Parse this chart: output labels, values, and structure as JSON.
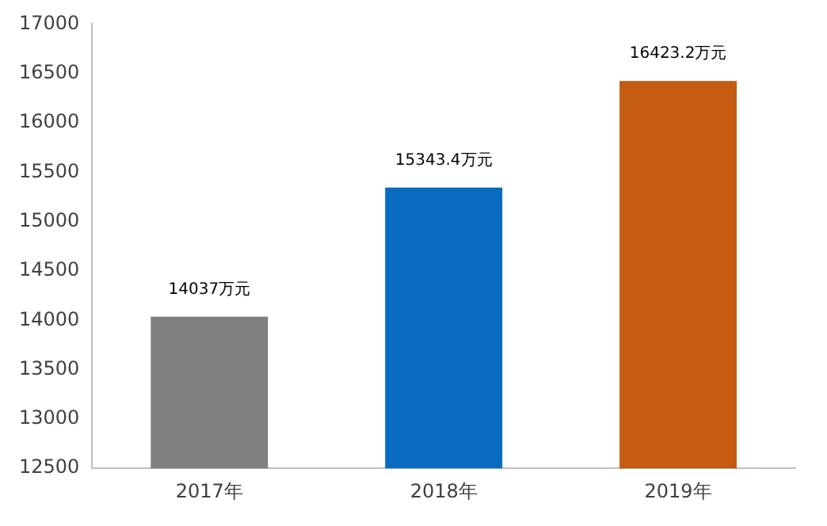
{
  "chart_data": {
    "type": "bar",
    "categories": [
      "2017年",
      "2018年",
      "2019年"
    ],
    "values": [
      14037,
      15343.4,
      16423.2
    ],
    "colors": [
      "#7f7f7f",
      "#0a6cc0",
      "#c55a11"
    ],
    "value_labels": [
      "14037万元",
      "15343.4万元",
      "16423.2万元"
    ],
    "ylim": [
      12500,
      17000
    ],
    "yticks": [
      12500,
      13000,
      13500,
      14000,
      14500,
      15000,
      15500,
      16000,
      16500,
      17000
    ],
    "grid": false,
    "legend": false
  }
}
